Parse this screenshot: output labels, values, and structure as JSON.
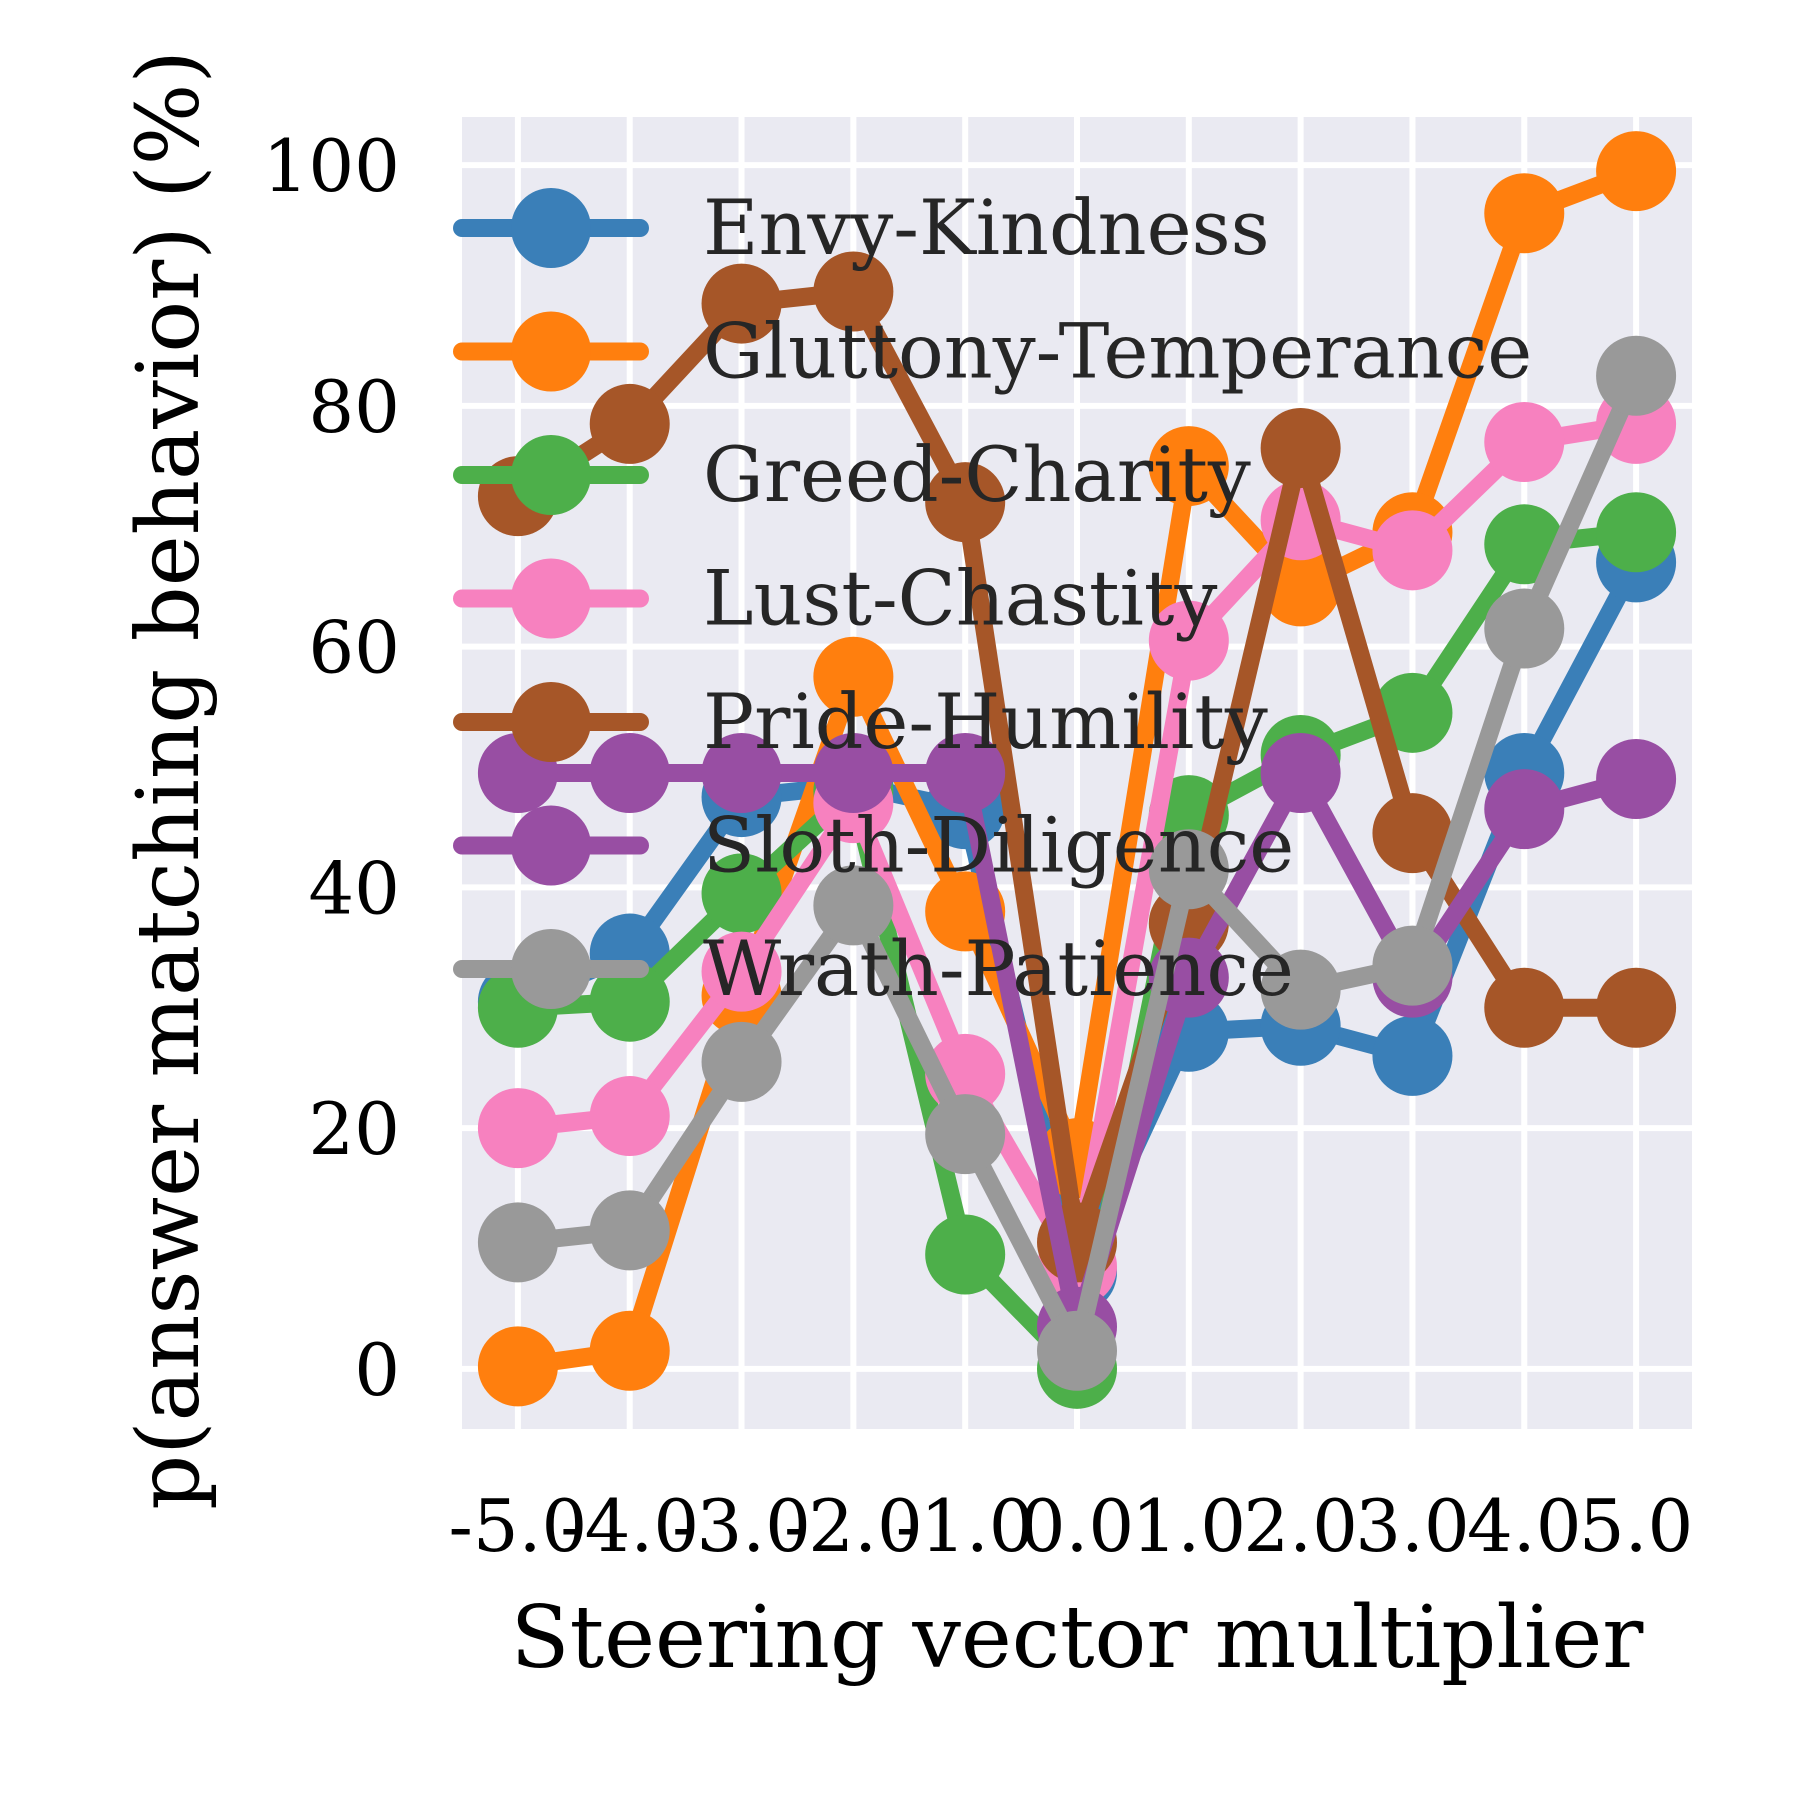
{
  "chart_data": {
    "type": "line",
    "title": "",
    "xlabel": "Steering vector multiplier",
    "ylabel": "p(answer matching behavior) (%)",
    "x": [
      -5.0,
      -4.0,
      -3.0,
      -2.0,
      -1.0,
      0.0,
      1.0,
      2.0,
      3.0,
      4.0,
      5.0
    ],
    "x_tick_labels": [
      "-5.0",
      "-4.0",
      "-3.0",
      "-2.0",
      "-1.0",
      "0.0",
      "1.0",
      "2.0",
      "3.0",
      "4.0",
      "5.0"
    ],
    "y_ticks": [
      0,
      20,
      40,
      60,
      80,
      100
    ],
    "y_tick_labels": [
      "0",
      "20",
      "40",
      "60",
      "80",
      "100"
    ],
    "xlim": [
      -5.5,
      5.5
    ],
    "ylim": [
      -5,
      104
    ],
    "grid": true,
    "legend_position": "top-left",
    "background": "#eaeaf2",
    "series": [
      {
        "name": "Envy-Kindness",
        "color": "#3a7fb8",
        "values": [
          30.5,
          34.5,
          47.5,
          48.5,
          46.5,
          8.0,
          28.0,
          28.5,
          26.0,
          49.5,
          67.0
        ]
      },
      {
        "name": "Gluttony-Temperance",
        "color": "#ff7f0e",
        "values": [
          0.2,
          1.5,
          31.0,
          57.5,
          38.0,
          17.5,
          75.0,
          65.0,
          69.5,
          96.0,
          99.5
        ]
      },
      {
        "name": "Greed-Charity",
        "color": "#4daf4a",
        "values": [
          30.0,
          30.5,
          39.5,
          48.0,
          9.5,
          0.0,
          46.0,
          51.0,
          54.5,
          68.5,
          69.5
        ]
      },
      {
        "name": "Lust-Chastity",
        "color": "#f781bf",
        "values": [
          20.0,
          21.0,
          33.0,
          47.0,
          24.5,
          8.5,
          60.5,
          70.5,
          68.0,
          77.0,
          78.5
        ]
      },
      {
        "name": "Pride-Humility",
        "color": "#a65628",
        "values": [
          72.5,
          78.5,
          88.5,
          89.5,
          72.0,
          10.5,
          37.0,
          76.5,
          44.5,
          30.0,
          30.0
        ]
      },
      {
        "name": "Sloth-Diligence",
        "color": "#984ea3",
        "values": [
          49.5,
          49.5,
          49.5,
          49.5,
          49.5,
          3.5,
          32.5,
          49.5,
          32.5,
          46.5,
          49.0
        ]
      },
      {
        "name": "Wrath-Patience",
        "color": "#999999",
        "values": [
          10.5,
          11.5,
          25.5,
          38.5,
          19.5,
          1.5,
          41.5,
          31.5,
          33.5,
          61.5,
          82.5
        ]
      }
    ]
  }
}
